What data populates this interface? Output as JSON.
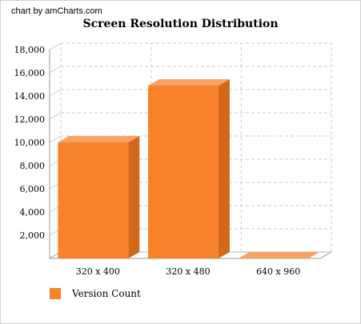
{
  "credit": "chart by amCharts.com",
  "colors": {
    "bar_front": "#F8822C",
    "bar_top": "#FBA164",
    "bar_side": "#D46818",
    "grid": "#cccccc"
  },
  "chart_data": {
    "type": "bar",
    "title": "Screen Resolution Distribution",
    "categories": [
      "320 x 400",
      "320 x 480",
      "640 x 960"
    ],
    "series": [
      {
        "name": "Version Count",
        "values": [
          10000,
          14900,
          0
        ]
      }
    ],
    "ylim": [
      0,
      18000
    ],
    "yticks": [
      2000,
      4000,
      6000,
      8000,
      10000,
      12000,
      14000,
      16000,
      18000
    ],
    "ytick_labels": [
      "2,000",
      "4,000",
      "6,000",
      "8,000",
      "10,000",
      "12,000",
      "14,000",
      "16,000",
      "18,000"
    ],
    "grid": true,
    "legend_position": "bottom-left",
    "three_d": true
  }
}
